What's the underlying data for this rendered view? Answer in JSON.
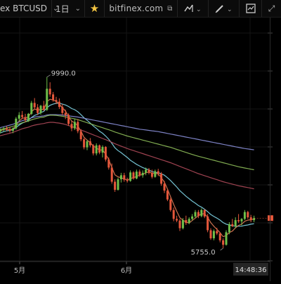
{
  "toolbar": {
    "symbol": "ex BTCUSD",
    "timeframe": "1日",
    "site": "bitfinex.com",
    "icons": [
      "chevron-down-icon",
      "star-icon",
      "external-link-icon",
      "indicator-icon",
      "pencil-icon",
      "snapshot-icon",
      "fullscreen-icon"
    ]
  },
  "chart_data": {
    "type": "candlestick",
    "annotations": [
      {
        "text": "9990.0",
        "label": "high"
      },
      {
        "text": "5755.0",
        "label": "low"
      }
    ],
    "x_axis": {
      "ticks": [
        "5月",
        "6月"
      ],
      "time_label": "14:48:36"
    },
    "price_range": [
      5600,
      11200
    ],
    "ohlc": [
      [
        8600,
        8700,
        8540,
        8620
      ],
      [
        8620,
        8690,
        8570,
        8650
      ],
      [
        8650,
        8720,
        8600,
        8690
      ],
      [
        8690,
        8760,
        8640,
        8720
      ],
      [
        8720,
        8780,
        8650,
        8700
      ],
      [
        8700,
        8760,
        8620,
        8660
      ],
      [
        8660,
        8740,
        8600,
        8720
      ],
      [
        8720,
        9000,
        8690,
        8960
      ],
      [
        8960,
        9120,
        8900,
        9050
      ],
      [
        9050,
        9150,
        8950,
        9000
      ],
      [
        9000,
        9080,
        8870,
        8920
      ],
      [
        8920,
        9100,
        8880,
        9080
      ],
      [
        9080,
        9400,
        9050,
        9350
      ],
      [
        9350,
        9470,
        9200,
        9240
      ],
      [
        9240,
        9320,
        9050,
        9100
      ],
      [
        9100,
        9300,
        9060,
        9280
      ],
      [
        9280,
        9400,
        9150,
        9180
      ],
      [
        9180,
        9990,
        9150,
        9700
      ],
      [
        9700,
        9860,
        9500,
        9560
      ],
      [
        9560,
        9620,
        9380,
        9420
      ],
      [
        9420,
        9500,
        9320,
        9380
      ],
      [
        9380,
        9460,
        9200,
        9250
      ],
      [
        9250,
        9320,
        9050,
        9100
      ],
      [
        9100,
        9180,
        8950,
        9050
      ],
      [
        9050,
        9090,
        8780,
        8830
      ],
      [
        8830,
        8900,
        8650,
        8720
      ],
      [
        8720,
        8950,
        8680,
        8880
      ],
      [
        8880,
        8950,
        8600,
        8650
      ],
      [
        8650,
        8700,
        8400,
        8450
      ],
      [
        8450,
        8480,
        8200,
        8250
      ],
      [
        8250,
        8440,
        8180,
        8400
      ],
      [
        8400,
        8480,
        8250,
        8300
      ],
      [
        8300,
        8330,
        8050,
        8100
      ],
      [
        8100,
        8350,
        8050,
        8300
      ],
      [
        8300,
        8320,
        8080,
        8120
      ],
      [
        8120,
        8300,
        8000,
        8260
      ],
      [
        8260,
        8280,
        7900,
        7950
      ],
      [
        7950,
        8000,
        7700,
        7750
      ],
      [
        7750,
        7850,
        7350,
        7400
      ],
      [
        7400,
        7460,
        7150,
        7200
      ],
      [
        7200,
        7500,
        7180,
        7460
      ],
      [
        7460,
        7620,
        7380,
        7560
      ],
      [
        7560,
        7620,
        7400,
        7450
      ],
      [
        7450,
        7500,
        7380,
        7420
      ],
      [
        7420,
        7680,
        7400,
        7630
      ],
      [
        7630,
        7660,
        7450,
        7480
      ],
      [
        7480,
        7700,
        7460,
        7650
      ],
      [
        7650,
        7700,
        7520,
        7560
      ],
      [
        7560,
        7680,
        7500,
        7620
      ],
      [
        7620,
        7750,
        7560,
        7700
      ],
      [
        7700,
        7740,
        7580,
        7620
      ],
      [
        7620,
        7700,
        7480,
        7520
      ],
      [
        7520,
        7700,
        7500,
        7660
      ],
      [
        7660,
        7720,
        7540,
        7600
      ],
      [
        7600,
        7640,
        7300,
        7350
      ],
      [
        7350,
        7420,
        7120,
        7180
      ],
      [
        7180,
        7220,
        6920,
        6960
      ],
      [
        6960,
        7000,
        6660,
        6700
      ],
      [
        6700,
        6760,
        6420,
        6480
      ],
      [
        6480,
        6560,
        6400,
        6440
      ],
      [
        6440,
        6480,
        6180,
        6250
      ],
      [
        6250,
        6500,
        6220,
        6450
      ],
      [
        6450,
        6560,
        6330,
        6380
      ],
      [
        6380,
        6520,
        6350,
        6480
      ],
      [
        6480,
        6600,
        6440,
        6540
      ],
      [
        6540,
        6700,
        6500,
        6650
      ],
      [
        6650,
        6700,
        6500,
        6550
      ],
      [
        6550,
        6740,
        6520,
        6700
      ],
      [
        6700,
        6720,
        6500,
        6540
      ],
      [
        6540,
        6600,
        6150,
        6200
      ],
      [
        6200,
        6250,
        5960,
        6000
      ],
      [
        6000,
        6220,
        5950,
        6180
      ],
      [
        6180,
        6260,
        6080,
        6120
      ],
      [
        6120,
        6140,
        5900,
        5950
      ],
      [
        5950,
        6000,
        5755,
        5840
      ],
      [
        5840,
        6200,
        5820,
        6150
      ],
      [
        6150,
        6400,
        6100,
        6350
      ],
      [
        6350,
        6480,
        6280,
        6300
      ],
      [
        6300,
        6520,
        6250,
        6450
      ],
      [
        6450,
        6600,
        6380,
        6420
      ],
      [
        6420,
        6500,
        6320,
        6480
      ],
      [
        6480,
        6700,
        6450,
        6650
      ],
      [
        6650,
        6680,
        6480,
        6520
      ],
      [
        6520,
        6580,
        6400,
        6450
      ],
      [
        6450,
        6560,
        6400,
        6500
      ]
    ],
    "moving_averages": [
      {
        "color": "#7fd6e8",
        "values": [
          8560,
          8580,
          8610,
          8640,
          8660,
          8670,
          8690,
          8740,
          8800,
          8850,
          8880,
          8920,
          8990,
          9040,
          9070,
          9110,
          9140,
          9230,
          9290,
          9320,
          9340,
          9340,
          9320,
          9300,
          9260,
          9210,
          9180,
          9130,
          9060,
          8980,
          8920,
          8850,
          8780,
          8720,
          8650,
          8600,
          8530,
          8450,
          8350,
          8240,
          8170,
          8120,
          8060,
          8000,
          7930,
          7880,
          7830,
          7790,
          7750,
          7720,
          7690,
          7650,
          7630,
          7620,
          7600,
          7560,
          7500,
          7430,
          7350,
          7270,
          7180,
          7110,
          7040,
          6980,
          6920,
          6870,
          6810,
          6770,
          6720,
          6660,
          6590,
          6540,
          6500,
          6450,
          6390,
          6350,
          6330,
          6310,
          6300,
          6300,
          6300,
          6320,
          6330,
          6350,
          6360
        ]
      },
      {
        "color": "#e07b57",
        "values": [
          8590,
          8620,
          8660,
          8690,
          8700,
          8690,
          8700,
          8800,
          8900,
          8970,
          8980,
          9000,
          9130,
          9200,
          9170,
          9190,
          9190,
          9380,
          9440,
          9420,
          9390,
          9320,
          9230,
          9150,
          9020,
          8900,
          8860,
          8780,
          8650,
          8500,
          8430,
          8370,
          8280,
          8240,
          8180,
          8190,
          8080,
          7950,
          7750,
          7570,
          7520,
          7500,
          7470,
          7440,
          7480,
          7500,
          7530,
          7560,
          7580,
          7620,
          7640,
          7610,
          7600,
          7600,
          7500,
          7390,
          7220,
          7030,
          6840,
          6670,
          6510,
          6450,
          6400,
          6380,
          6440,
          6500,
          6560,
          6600,
          6610,
          6520,
          6390,
          6300,
          6220,
          6140,
          6040,
          6070,
          6140,
          6180,
          6260,
          6320,
          6350,
          6420,
          6450,
          6460,
          6480
        ]
      },
      {
        "color": "#8a8fd8",
        "values": [
          8700,
          8720,
          8740,
          8760,
          8780,
          8800,
          8820,
          8850,
          8880,
          8910,
          8930,
          8950,
          8980,
          9000,
          9010,
          9020,
          9030,
          9050,
          9060,
          9060,
          9060,
          9055,
          9050,
          9040,
          9030,
          9020,
          9010,
          9000,
          8985,
          8970,
          8955,
          8940,
          8925,
          8910,
          8895,
          8880,
          8865,
          8850,
          8835,
          8820,
          8805,
          8790,
          8775,
          8760,
          8745,
          8730,
          8715,
          8700,
          8690,
          8680,
          8670,
          8660,
          8650,
          8640,
          8625,
          8610,
          8595,
          8580,
          8565,
          8550,
          8535,
          8520,
          8505,
          8490,
          8475,
          8460,
          8445,
          8430,
          8415,
          8400,
          8385,
          8370,
          8355,
          8340,
          8325,
          8310,
          8295,
          8280,
          8265,
          8250,
          8235,
          8220,
          8210,
          8200,
          8190
        ]
      },
      {
        "color": "#8fbf5a",
        "values": [
          8650,
          8670,
          8690,
          8710,
          8730,
          8750,
          8770,
          8800,
          8830,
          8860,
          8880,
          8900,
          8930,
          8955,
          8970,
          8990,
          9000,
          9030,
          9045,
          9045,
          9040,
          9030,
          9020,
          9005,
          8990,
          8970,
          8955,
          8935,
          8910,
          8885,
          8860,
          8835,
          8810,
          8785,
          8760,
          8735,
          8710,
          8685,
          8660,
          8630,
          8605,
          8580,
          8555,
          8530,
          8510,
          8490,
          8470,
          8450,
          8430,
          8410,
          8390,
          8370,
          8350,
          8330,
          8310,
          8290,
          8270,
          8250,
          8225,
          8200,
          8175,
          8150,
          8125,
          8100,
          8075,
          8050,
          8030,
          8010,
          7990,
          7970,
          7950,
          7930,
          7910,
          7890,
          7870,
          7850,
          7830,
          7810,
          7790,
          7770,
          7755,
          7740,
          7725,
          7710,
          7695
        ]
      },
      {
        "color": "#b04a5a",
        "values": [
          8500,
          8520,
          8540,
          8560,
          8580,
          8600,
          8620,
          8650,
          8680,
          8710,
          8730,
          8750,
          8780,
          8800,
          8815,
          8830,
          8840,
          8860,
          8870,
          8870,
          8860,
          8850,
          8835,
          8815,
          8790,
          8765,
          8740,
          8710,
          8680,
          8650,
          8620,
          8590,
          8560,
          8530,
          8500,
          8470,
          8440,
          8410,
          8375,
          8340,
          8310,
          8280,
          8250,
          8220,
          8195,
          8170,
          8145,
          8120,
          8095,
          8070,
          8045,
          8020,
          7995,
          7970,
          7945,
          7920,
          7895,
          7870,
          7840,
          7810,
          7780,
          7750,
          7720,
          7690,
          7660,
          7630,
          7600,
          7575,
          7550,
          7525,
          7500,
          7475,
          7450,
          7425,
          7400,
          7380,
          7360,
          7340,
          7320,
          7300,
          7285,
          7270,
          7255,
          7240,
          7225
        ]
      }
    ]
  }
}
